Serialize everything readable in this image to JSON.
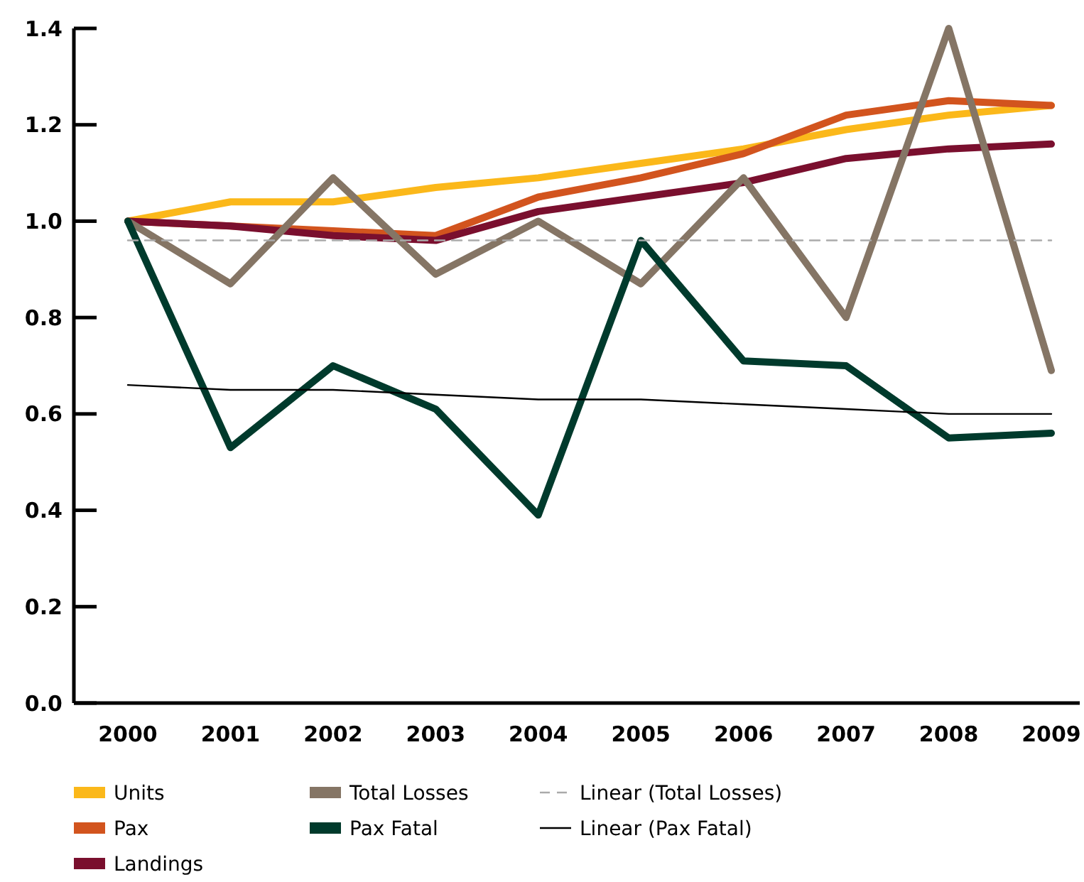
{
  "chart_data": {
    "type": "line",
    "categories": [
      "2000",
      "2001",
      "2002",
      "2003",
      "2004",
      "2005",
      "2006",
      "2007",
      "2008",
      "2009"
    ],
    "ylim": [
      0,
      1.4
    ],
    "yticks": [
      {
        "value": 0,
        "label": "0.0"
      },
      {
        "value": 0.2,
        "label": "0.2"
      },
      {
        "value": 0.4,
        "label": "0.4"
      },
      {
        "value": 0.6,
        "label": "0.6"
      },
      {
        "value": 0.8,
        "label": "0.8"
      },
      {
        "value": 1,
        "label": "1.0"
      },
      {
        "value": 1.2,
        "label": "1.2"
      },
      {
        "value": 1.4,
        "label": "1.4"
      }
    ],
    "grid": false,
    "legend": "bottom",
    "marker": "none",
    "series": [
      {
        "name": "Units",
        "color": "#fbb81a",
        "values": [
          1.0,
          1.04,
          1.04,
          1.07,
          1.09,
          1.12,
          1.15,
          1.19,
          1.22,
          1.24
        ]
      },
      {
        "name": "Pax",
        "color": "#d2541e",
        "values": [
          1.0,
          0.99,
          0.98,
          0.97,
          1.05,
          1.09,
          1.14,
          1.22,
          1.25,
          1.24
        ]
      },
      {
        "name": "Landings",
        "color": "#7a0f2e",
        "values": [
          1.0,
          0.99,
          0.97,
          0.96,
          1.02,
          1.05,
          1.08,
          1.13,
          1.15,
          1.16
        ]
      },
      {
        "name": "Total Losses",
        "color": "#857565",
        "values": [
          1.0,
          0.87,
          1.09,
          0.89,
          1.0,
          0.87,
          1.09,
          0.8,
          1.4,
          0.69
        ]
      },
      {
        "name": "Pax Fatal",
        "color": "#003a2c",
        "values": [
          1.0,
          0.53,
          0.7,
          0.61,
          0.39,
          0.96,
          0.71,
          0.7,
          0.55,
          0.56
        ]
      },
      {
        "name": "Linear (Total Losses)",
        "color": "#aaaaaa",
        "line_style": "dashed",
        "values": [
          0.96,
          0.96,
          0.96,
          0.96,
          0.96,
          0.96,
          0.96,
          0.96,
          0.96,
          0.96
        ]
      },
      {
        "name": "Linear (Pax Fatal)",
        "color": "#000000",
        "line_style": "solid",
        "values": [
          0.66,
          0.65,
          0.65,
          0.64,
          0.63,
          0.63,
          0.62,
          0.61,
          0.6,
          0.6
        ]
      }
    ]
  }
}
